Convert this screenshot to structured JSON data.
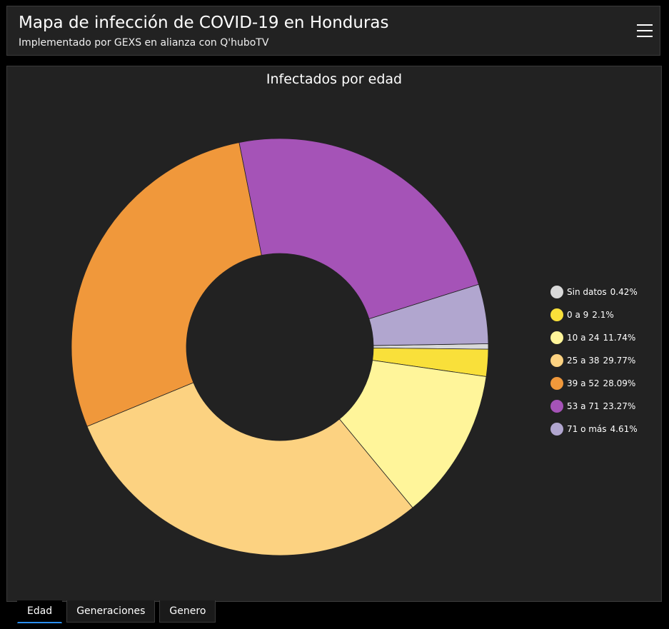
{
  "header": {
    "title": "Mapa de infección de COVID-19 en Honduras",
    "subtitle": "Implementado por GEXS en alianza con Q'huboTV",
    "menu_icon": "hamburger-menu-icon"
  },
  "tabs": [
    {
      "label": "Edad",
      "active": true
    },
    {
      "label": "Generaciones",
      "active": false
    },
    {
      "label": "Genero",
      "active": false
    }
  ],
  "chart_data": {
    "type": "pie",
    "donut": true,
    "title": "Infectados por edad",
    "legend_position": "right",
    "slices": [
      {
        "label": "Sin datos",
        "value": 0.42,
        "display": "0.42%",
        "color": "#d9d9d9"
      },
      {
        "label": "0 a 9",
        "value": 2.1,
        "display": "2.1%",
        "color": "#f9e03a"
      },
      {
        "label": "10 a 24",
        "value": 11.74,
        "display": "11.74%",
        "color": "#fff59a"
      },
      {
        "label": "25 a 38",
        "value": 29.77,
        "display": "29.77%",
        "color": "#fcd281"
      },
      {
        "label": "39 a 52",
        "value": 28.09,
        "display": "28.09%",
        "color": "#f0983b"
      },
      {
        "label": "53 a 71",
        "value": 23.27,
        "display": "23.27%",
        "color": "#a553b7"
      },
      {
        "label": "71 o más",
        "value": 4.61,
        "display": "4.61%",
        "color": "#b1a6cf"
      }
    ]
  }
}
